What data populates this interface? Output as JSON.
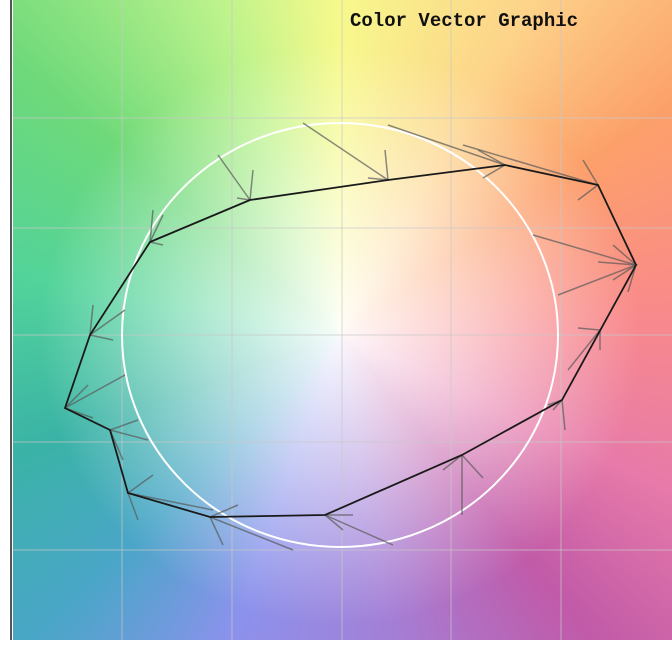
{
  "header": {
    "title": "Color Vector Graphic"
  }
}
